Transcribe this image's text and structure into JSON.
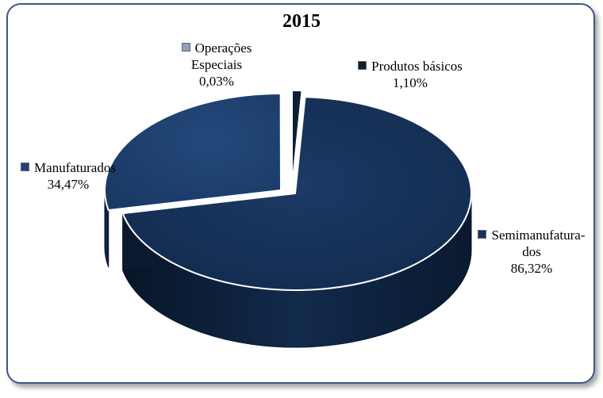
{
  "chart_data": {
    "type": "pie",
    "title": "2015",
    "slices": [
      {
        "name": "Produtos básicos",
        "value": 1.1,
        "label": "1,10%",
        "color": "#0f1e34"
      },
      {
        "name": "Semimanufatura-dos",
        "name_lines": [
          "Semimanufatura-",
          "dos"
        ],
        "value": 86.32,
        "label": "86,32%",
        "color": "#17325a"
      },
      {
        "name": "Manufaturados",
        "value": 34.47,
        "label": "34,47%",
        "color": "#1f4272"
      },
      {
        "name": "Operações Especiais",
        "name_lines": [
          "Operações",
          "Especiais"
        ],
        "value": 0.03,
        "label": "0,03%",
        "color": "#8fa3c0"
      }
    ],
    "legend": "none"
  },
  "labels": {
    "produtos": {
      "line1": "Produtos básicos",
      "value": "1,10%"
    },
    "semi": {
      "line1": "Semimanufatura-",
      "line2": "dos",
      "value": "86,32%"
    },
    "manu": {
      "line1": "Manufaturados",
      "value": "34,47%"
    },
    "oper": {
      "line1": "Operações",
      "line2": "Especiais",
      "value": "0,03%"
    }
  }
}
